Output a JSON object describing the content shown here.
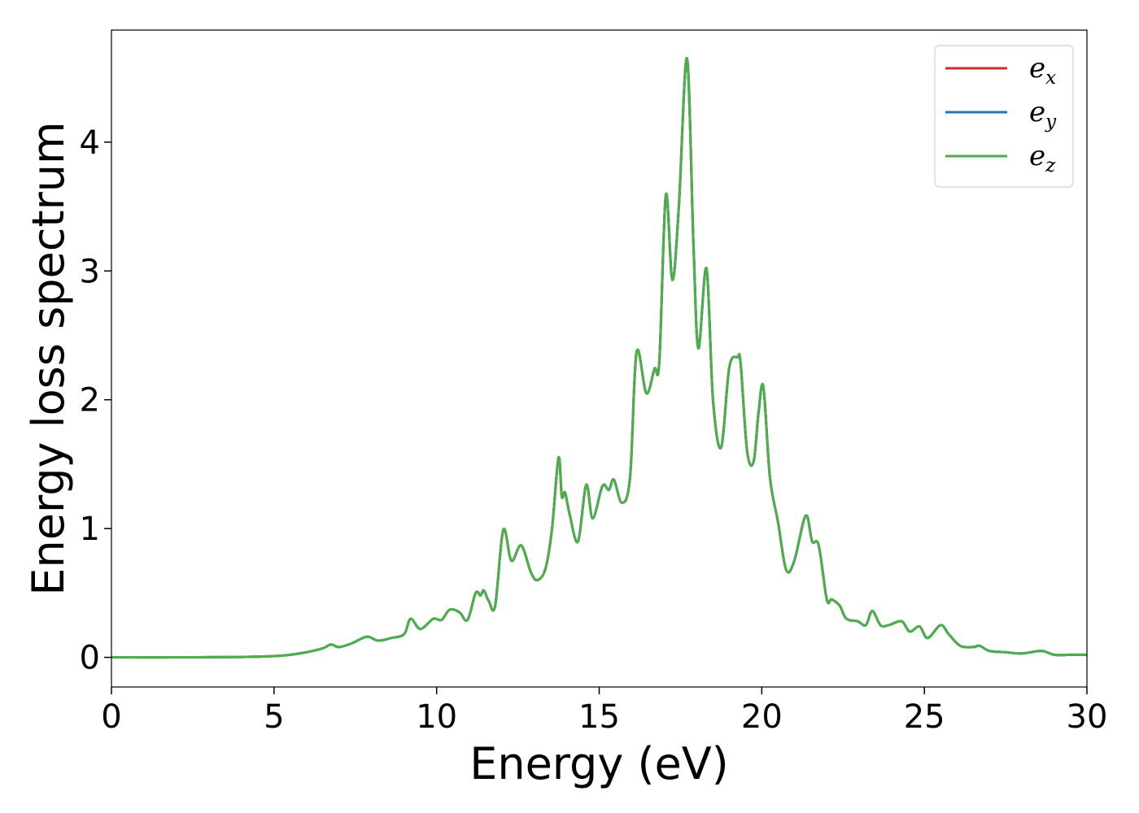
{
  "chart_data": {
    "type": "line",
    "title": "",
    "xlabel": "Energy (eV)",
    "ylabel": "Energy loss spectrum",
    "xlim": [
      0,
      30
    ],
    "ylim": [
      -0.23,
      4.87
    ],
    "x_ticks": [
      0,
      5,
      10,
      15,
      20,
      25,
      30
    ],
    "y_ticks": [
      0,
      1,
      2,
      3,
      4
    ],
    "grid": false,
    "legend_position": "top-right",
    "series": [
      {
        "name": "e_x",
        "label_base": "e",
        "label_sub": "x",
        "color": "#d62728",
        "x": [
          0,
          2,
          4,
          5,
          5.5,
          6,
          6.5,
          6.75,
          7,
          7.4,
          7.85,
          8.2,
          8.6,
          9,
          9.2,
          9.5,
          9.9,
          10.15,
          10.4,
          10.7,
          10.95,
          11.2,
          11.35,
          11.45,
          11.6,
          11.8,
          12.05,
          12.3,
          12.6,
          12.9,
          13.1,
          13.35,
          13.55,
          13.75,
          13.85,
          13.95,
          14.1,
          14.35,
          14.6,
          14.8,
          15.1,
          15.3,
          15.45,
          15.7,
          15.95,
          16.15,
          16.45,
          16.7,
          16.85,
          17.05,
          17.25,
          17.45,
          17.7,
          17.9,
          18.05,
          18.3,
          18.5,
          18.75,
          19,
          19.25,
          19.35,
          19.55,
          19.75,
          19.9,
          20.05,
          20.25,
          20.5,
          20.75,
          21,
          21.35,
          21.55,
          21.75,
          22,
          22.15,
          22.4,
          22.6,
          22.95,
          23.2,
          23.4,
          23.65,
          23.9,
          24.3,
          24.55,
          24.85,
          25.1,
          25.5,
          25.75,
          26.1,
          26.5,
          26.7,
          27,
          27.5,
          28,
          28.6,
          29,
          29.5,
          30
        ],
        "values": [
          0,
          0,
          0.003,
          0.01,
          0.02,
          0.04,
          0.07,
          0.1,
          0.08,
          0.11,
          0.16,
          0.13,
          0.15,
          0.18,
          0.3,
          0.22,
          0.3,
          0.29,
          0.37,
          0.35,
          0.29,
          0.5,
          0.48,
          0.52,
          0.44,
          0.4,
          0.99,
          0.75,
          0.87,
          0.66,
          0.6,
          0.69,
          1.0,
          1.55,
          1.25,
          1.28,
          1.1,
          0.9,
          1.34,
          1.08,
          1.33,
          1.3,
          1.38,
          1.2,
          1.4,
          2.37,
          2.05,
          2.24,
          2.3,
          3.59,
          2.93,
          3.5,
          4.65,
          3.2,
          2.4,
          3.02,
          2.0,
          1.63,
          2.25,
          2.33,
          2.28,
          1.6,
          1.52,
          1.9,
          2.1,
          1.4,
          1.05,
          0.68,
          0.75,
          1.1,
          0.9,
          0.87,
          0.45,
          0.45,
          0.4,
          0.3,
          0.28,
          0.25,
          0.36,
          0.25,
          0.25,
          0.28,
          0.2,
          0.24,
          0.15,
          0.25,
          0.18,
          0.09,
          0.08,
          0.09,
          0.05,
          0.04,
          0.03,
          0.05,
          0.02,
          0.02,
          0.02
        ]
      },
      {
        "name": "e_y",
        "label_base": "e",
        "label_sub": "y",
        "color": "#1f77b4",
        "x": [
          0,
          2,
          4,
          5,
          5.5,
          6,
          6.5,
          6.75,
          7,
          7.4,
          7.85,
          8.2,
          8.6,
          9,
          9.2,
          9.5,
          9.9,
          10.15,
          10.4,
          10.7,
          10.95,
          11.2,
          11.35,
          11.45,
          11.6,
          11.8,
          12.05,
          12.3,
          12.6,
          12.9,
          13.1,
          13.35,
          13.55,
          13.75,
          13.85,
          13.95,
          14.1,
          14.35,
          14.6,
          14.8,
          15.1,
          15.3,
          15.45,
          15.7,
          15.95,
          16.15,
          16.45,
          16.7,
          16.85,
          17.05,
          17.25,
          17.45,
          17.7,
          17.9,
          18.05,
          18.3,
          18.5,
          18.75,
          19,
          19.25,
          19.35,
          19.55,
          19.75,
          19.9,
          20.05,
          20.25,
          20.5,
          20.75,
          21,
          21.35,
          21.55,
          21.75,
          22,
          22.15,
          22.4,
          22.6,
          22.95,
          23.2,
          23.4,
          23.65,
          23.9,
          24.3,
          24.55,
          24.85,
          25.1,
          25.5,
          25.75,
          26.1,
          26.5,
          26.7,
          27,
          27.5,
          28,
          28.6,
          29,
          29.5,
          30
        ],
        "values": [
          0,
          0,
          0.003,
          0.01,
          0.02,
          0.04,
          0.07,
          0.1,
          0.08,
          0.11,
          0.16,
          0.13,
          0.15,
          0.18,
          0.3,
          0.22,
          0.3,
          0.29,
          0.37,
          0.35,
          0.29,
          0.5,
          0.48,
          0.52,
          0.44,
          0.4,
          0.99,
          0.75,
          0.87,
          0.66,
          0.6,
          0.69,
          1.0,
          1.55,
          1.25,
          1.28,
          1.1,
          0.9,
          1.34,
          1.08,
          1.33,
          1.3,
          1.38,
          1.2,
          1.4,
          2.37,
          2.05,
          2.24,
          2.3,
          3.59,
          2.93,
          3.5,
          4.65,
          3.2,
          2.4,
          3.02,
          2.0,
          1.63,
          2.25,
          2.33,
          2.28,
          1.6,
          1.52,
          1.9,
          2.1,
          1.4,
          1.05,
          0.68,
          0.75,
          1.1,
          0.9,
          0.87,
          0.45,
          0.45,
          0.4,
          0.3,
          0.28,
          0.25,
          0.36,
          0.25,
          0.25,
          0.28,
          0.2,
          0.24,
          0.15,
          0.25,
          0.18,
          0.09,
          0.08,
          0.09,
          0.05,
          0.04,
          0.03,
          0.05,
          0.02,
          0.02,
          0.02
        ]
      },
      {
        "name": "e_z",
        "label_base": "e",
        "label_sub": "z",
        "color": "#4daf4a",
        "x": [
          0,
          2,
          4,
          5,
          5.5,
          6,
          6.5,
          6.75,
          7,
          7.4,
          7.85,
          8.2,
          8.6,
          9,
          9.2,
          9.5,
          9.9,
          10.15,
          10.4,
          10.7,
          10.95,
          11.2,
          11.35,
          11.45,
          11.6,
          11.8,
          12.05,
          12.3,
          12.6,
          12.9,
          13.1,
          13.35,
          13.55,
          13.75,
          13.85,
          13.95,
          14.1,
          14.35,
          14.6,
          14.8,
          15.1,
          15.3,
          15.45,
          15.7,
          15.95,
          16.15,
          16.45,
          16.7,
          16.85,
          17.05,
          17.25,
          17.45,
          17.7,
          17.9,
          18.05,
          18.3,
          18.5,
          18.75,
          19,
          19.25,
          19.35,
          19.55,
          19.75,
          19.9,
          20.05,
          20.25,
          20.5,
          20.75,
          21,
          21.35,
          21.55,
          21.75,
          22,
          22.15,
          22.4,
          22.6,
          22.95,
          23.2,
          23.4,
          23.65,
          23.9,
          24.3,
          24.55,
          24.85,
          25.1,
          25.5,
          25.75,
          26.1,
          26.5,
          26.7,
          27,
          27.5,
          28,
          28.6,
          29,
          29.5,
          30
        ],
        "values": [
          0,
          0,
          0.003,
          0.01,
          0.02,
          0.04,
          0.07,
          0.1,
          0.08,
          0.11,
          0.16,
          0.13,
          0.15,
          0.18,
          0.3,
          0.22,
          0.3,
          0.29,
          0.37,
          0.35,
          0.29,
          0.5,
          0.48,
          0.52,
          0.44,
          0.4,
          0.99,
          0.75,
          0.87,
          0.66,
          0.6,
          0.69,
          1.0,
          1.55,
          1.25,
          1.28,
          1.1,
          0.9,
          1.34,
          1.08,
          1.33,
          1.3,
          1.38,
          1.2,
          1.4,
          2.37,
          2.05,
          2.24,
          2.3,
          3.59,
          2.93,
          3.5,
          4.65,
          3.2,
          2.4,
          3.02,
          2.0,
          1.63,
          2.25,
          2.33,
          2.28,
          1.6,
          1.52,
          1.9,
          2.1,
          1.4,
          1.05,
          0.68,
          0.75,
          1.1,
          0.9,
          0.87,
          0.45,
          0.45,
          0.4,
          0.3,
          0.28,
          0.25,
          0.36,
          0.25,
          0.25,
          0.28,
          0.2,
          0.24,
          0.15,
          0.25,
          0.18,
          0.09,
          0.08,
          0.09,
          0.05,
          0.04,
          0.03,
          0.05,
          0.02,
          0.02,
          0.02
        ]
      }
    ]
  }
}
